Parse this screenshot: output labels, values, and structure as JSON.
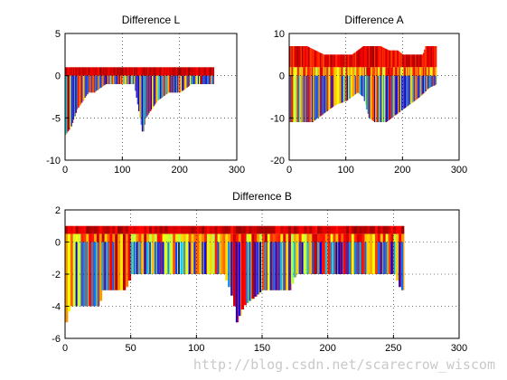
{
  "chart_data": [
    {
      "type": "heatmap",
      "title": "Difference L",
      "xlim": [
        0,
        300
      ],
      "ylim": [
        -10,
        5
      ],
      "xticks": [
        "0",
        "100",
        "200",
        "300"
      ],
      "yticks": [
        "-10",
        "-5",
        "0",
        "5"
      ],
      "grid": true,
      "x_extent": [
        0,
        260
      ],
      "top_band": [
        0,
        1
      ],
      "lower_profile": [
        [
          0,
          -7
        ],
        [
          10,
          -6
        ],
        [
          20,
          -4
        ],
        [
          30,
          -3
        ],
        [
          40,
          -2
        ],
        [
          50,
          -2
        ],
        [
          70,
          -1
        ],
        [
          90,
          -1
        ],
        [
          120,
          -1
        ],
        [
          130,
          -5
        ],
        [
          135,
          -7
        ],
        [
          140,
          -5
        ],
        [
          150,
          -4
        ],
        [
          160,
          -3
        ],
        [
          180,
          -2
        ],
        [
          200,
          -2
        ],
        [
          220,
          -1
        ],
        [
          260,
          -1
        ]
      ]
    },
    {
      "type": "heatmap",
      "title": "Difference A",
      "xlim": [
        0,
        300
      ],
      "ylim": [
        -20,
        10
      ],
      "xticks": [
        "0",
        "100",
        "200",
        "300"
      ],
      "yticks": [
        "-20",
        "-10",
        "0",
        "10"
      ],
      "grid": true,
      "x_extent": [
        0,
        260
      ],
      "upper_profile": [
        [
          0,
          7
        ],
        [
          30,
          7
        ],
        [
          45,
          6
        ],
        [
          60,
          5
        ],
        [
          110,
          5
        ],
        [
          120,
          6
        ],
        [
          130,
          7
        ],
        [
          160,
          7
        ],
        [
          175,
          6
        ],
        [
          190,
          6
        ],
        [
          200,
          5
        ],
        [
          235,
          5
        ],
        [
          240,
          7
        ],
        [
          260,
          7
        ]
      ],
      "lower_profile": [
        [
          0,
          -11
        ],
        [
          40,
          -11
        ],
        [
          60,
          -9
        ],
        [
          80,
          -7
        ],
        [
          100,
          -6
        ],
        [
          120,
          -4
        ],
        [
          130,
          -5
        ],
        [
          140,
          -10
        ],
        [
          150,
          -11
        ],
        [
          170,
          -11
        ],
        [
          190,
          -9
        ],
        [
          210,
          -7
        ],
        [
          230,
          -5
        ],
        [
          245,
          -3
        ],
        [
          260,
          -2
        ]
      ]
    },
    {
      "type": "heatmap",
      "title": "Difference B",
      "xlim": [
        0,
        300
      ],
      "ylim": [
        -6,
        2
      ],
      "xticks": [
        "0",
        "50",
        "100",
        "150",
        "200",
        "250",
        "300"
      ],
      "yticks": [
        "-6",
        "-4",
        "-2",
        "0",
        "2"
      ],
      "grid": true,
      "x_extent": [
        0,
        258
      ],
      "top_band": [
        0.5,
        1
      ],
      "lower_profile": [
        [
          0,
          -5
        ],
        [
          3,
          -4
        ],
        [
          25,
          -4
        ],
        [
          28,
          -3
        ],
        [
          45,
          -3
        ],
        [
          50,
          -2
        ],
        [
          120,
          -2
        ],
        [
          125,
          -3
        ],
        [
          128,
          -4
        ],
        [
          130,
          -5
        ],
        [
          135,
          -4
        ],
        [
          150,
          -3
        ],
        [
          170,
          -3
        ],
        [
          175,
          -2
        ],
        [
          250,
          -2
        ],
        [
          255,
          -3
        ],
        [
          258,
          -3
        ]
      ]
    }
  ],
  "watermark": "http://blog.csdn.net/scarecrow_wiscom"
}
